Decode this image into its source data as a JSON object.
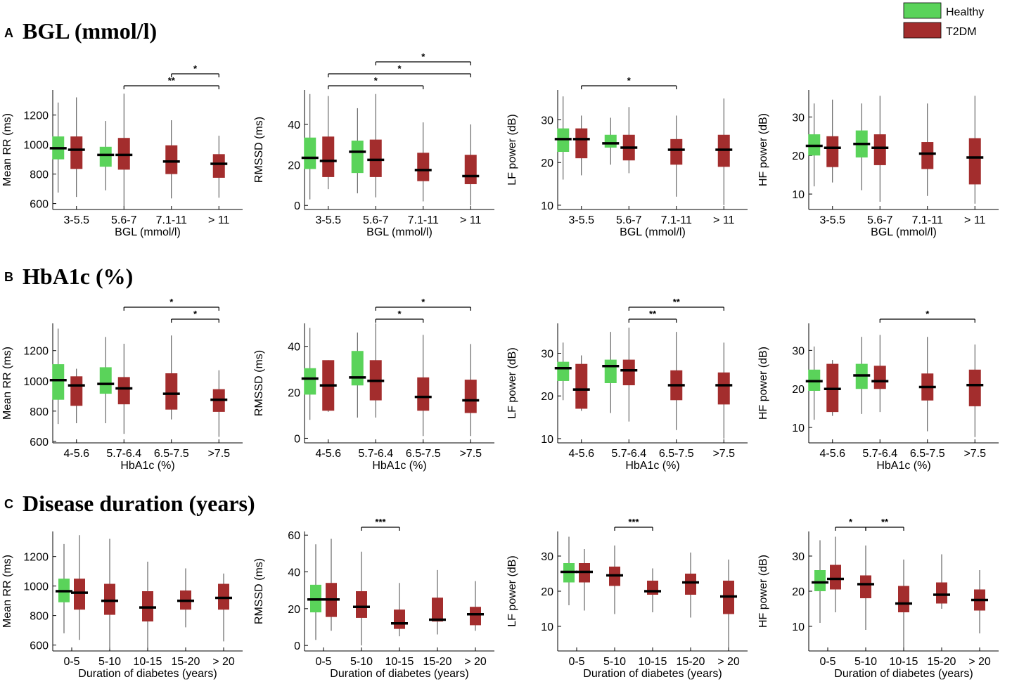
{
  "legend": [
    {
      "label": "Healthy",
      "color": "#5ad35a"
    },
    {
      "label": "T2DM",
      "color": "#a32d2d"
    }
  ],
  "colors": {
    "healthy": "#5ad35a",
    "t2dm": "#a32d2d",
    "axis": "#000000",
    "median": "#000000"
  },
  "sections": [
    {
      "letter": "A",
      "title": "BGL (mmol/l)"
    },
    {
      "letter": "B",
      "title": "HbA1c (%)"
    },
    {
      "letter": "C",
      "title": "Disease duration (years)"
    }
  ],
  "chart_data": [
    {
      "type": "box",
      "section": "A",
      "ylabel": "Mean RR (ms)",
      "xlabel": "BGL (mmol/l)",
      "ylim": [
        560,
        1370
      ],
      "yticks": [
        600,
        800,
        1000,
        1200
      ],
      "categories": [
        "3-5.5",
        "5.6-7",
        "7.1-11",
        "> 11"
      ],
      "boxes": [
        {
          "cat": 0,
          "group": "Healthy",
          "min": 675,
          "q1": 900,
          "median": 975,
          "q3": 1055,
          "max": 1285
        },
        {
          "cat": 0,
          "group": "T2DM",
          "min": 645,
          "q1": 835,
          "median": 965,
          "q3": 1055,
          "max": 1320
        },
        {
          "cat": 1,
          "group": "Healthy",
          "min": 690,
          "q1": 850,
          "median": 930,
          "q3": 985,
          "max": 1160
        },
        {
          "cat": 1,
          "group": "T2DM",
          "min": 580,
          "q1": 830,
          "median": 930,
          "q3": 1045,
          "max": 1345
        },
        {
          "cat": 2,
          "group": "T2DM",
          "min": 635,
          "q1": 800,
          "median": 885,
          "q3": 995,
          "max": 1165
        },
        {
          "cat": 3,
          "group": "T2DM",
          "min": 640,
          "q1": 775,
          "median": 870,
          "q3": 935,
          "max": 1060
        }
      ],
      "significance": [
        {
          "from": 1,
          "to": 3,
          "label": "**",
          "level": 0
        },
        {
          "from": 2,
          "to": 3,
          "label": "*",
          "level": 1
        }
      ]
    },
    {
      "type": "box",
      "section": "A",
      "ylabel": "RMSSD (ms)",
      "xlabel": "BGL (mmol/l)",
      "ylim": [
        -2,
        57
      ],
      "yticks": [
        0,
        20,
        40
      ],
      "categories": [
        "3-5.5",
        "5.6-7",
        "7.1-11",
        "> 11"
      ],
      "boxes": [
        {
          "cat": 0,
          "group": "Healthy",
          "min": 3,
          "q1": 18,
          "median": 23.5,
          "q3": 33.5,
          "max": 55
        },
        {
          "cat": 0,
          "group": "T2DM",
          "min": 8,
          "q1": 14,
          "median": 22,
          "q3": 34,
          "max": 54
        },
        {
          "cat": 1,
          "group": "Healthy",
          "min": 6,
          "q1": 16,
          "median": 26.5,
          "q3": 32,
          "max": 48
        },
        {
          "cat": 1,
          "group": "T2DM",
          "min": 4,
          "q1": 14,
          "median": 22.5,
          "q3": 32.5,
          "max": 55
        },
        {
          "cat": 2,
          "group": "T2DM",
          "min": 2,
          "q1": 12,
          "median": 17.5,
          "q3": 26,
          "max": 41
        },
        {
          "cat": 3,
          "group": "T2DM",
          "min": 0,
          "q1": 10.5,
          "median": 14.5,
          "q3": 25,
          "max": 40
        }
      ],
      "significance": [
        {
          "from": 0,
          "to": 2,
          "label": "*",
          "level": 0
        },
        {
          "from": 0,
          "to": 3,
          "label": "*",
          "level": 1
        },
        {
          "from": 1,
          "to": 3,
          "label": "*",
          "level": 2
        }
      ]
    },
    {
      "type": "box",
      "section": "A",
      "ylabel": "LF power (dB)",
      "xlabel": "BGL (mmol/l)",
      "ylim": [
        9,
        37
      ],
      "yticks": [
        10,
        20,
        30
      ],
      "categories": [
        "3-5.5",
        "5.6-7",
        "7.1-11",
        "> 11"
      ],
      "boxes": [
        {
          "cat": 0,
          "group": "Healthy",
          "min": 16,
          "q1": 22.5,
          "median": 25.5,
          "q3": 28,
          "max": 35.5
        },
        {
          "cat": 0,
          "group": "T2DM",
          "min": 17,
          "q1": 21,
          "median": 25.5,
          "q3": 28,
          "max": 31
        },
        {
          "cat": 1,
          "group": "Healthy",
          "min": 19.5,
          "q1": 23.5,
          "median": 24.5,
          "q3": 26.5,
          "max": 30.5
        },
        {
          "cat": 1,
          "group": "T2DM",
          "min": 17.5,
          "q1": 20.5,
          "median": 23.5,
          "q3": 26.5,
          "max": 33
        },
        {
          "cat": 2,
          "group": "T2DM",
          "min": 12,
          "q1": 19.5,
          "median": 23,
          "q3": 25.5,
          "max": 31
        },
        {
          "cat": 3,
          "group": "T2DM",
          "min": 10,
          "q1": 19,
          "median": 23,
          "q3": 26.5,
          "max": 35
        }
      ],
      "significance": [
        {
          "from": 0,
          "to": 2,
          "label": "*",
          "level": 0
        }
      ]
    },
    {
      "type": "box",
      "section": "A",
      "ylabel": "HF power (dB)",
      "xlabel": "BGL (mmol/l)",
      "ylim": [
        6,
        37
      ],
      "yticks": [
        10,
        20,
        30
      ],
      "categories": [
        "3-5.5",
        "5.6-7",
        "7.1-11",
        "> 11"
      ],
      "boxes": [
        {
          "cat": 0,
          "group": "Healthy",
          "min": 12,
          "q1": 20,
          "median": 22.5,
          "q3": 25.5,
          "max": 33.5
        },
        {
          "cat": 0,
          "group": "T2DM",
          "min": 13,
          "q1": 17,
          "median": 22,
          "q3": 25,
          "max": 34.5
        },
        {
          "cat": 1,
          "group": "Healthy",
          "min": 11,
          "q1": 19.5,
          "median": 23,
          "q3": 26.5,
          "max": 33.5
        },
        {
          "cat": 1,
          "group": "T2DM",
          "min": 8,
          "q1": 17.5,
          "median": 22,
          "q3": 25.5,
          "max": 35.5
        },
        {
          "cat": 2,
          "group": "T2DM",
          "min": 9.5,
          "q1": 16.5,
          "median": 20.5,
          "q3": 23.5,
          "max": 33.5
        },
        {
          "cat": 3,
          "group": "T2DM",
          "min": 7.5,
          "q1": 12.5,
          "median": 19.5,
          "q3": 24.5,
          "max": 35.5
        }
      ],
      "significance": []
    },
    {
      "type": "box",
      "section": "B",
      "ylabel": "Mean RR (ms)",
      "xlabel": "HbA1c (%)",
      "ylim": [
        590,
        1380
      ],
      "yticks": [
        600,
        800,
        1000,
        1200
      ],
      "categories": [
        "4-5.6",
        "5.7-6.4",
        "6.5-7.5",
        ">7.5"
      ],
      "boxes": [
        {
          "cat": 0,
          "group": "Healthy",
          "min": 715,
          "q1": 875,
          "median": 1005,
          "q3": 1110,
          "max": 1345
        },
        {
          "cat": 0,
          "group": "T2DM",
          "min": 720,
          "q1": 835,
          "median": 970,
          "q3": 1030,
          "max": 1080
        },
        {
          "cat": 1,
          "group": "Healthy",
          "min": 720,
          "q1": 915,
          "median": 980,
          "q3": 1090,
          "max": 1290
        },
        {
          "cat": 1,
          "group": "T2DM",
          "min": 650,
          "q1": 845,
          "median": 950,
          "q3": 1025,
          "max": 1245
        },
        {
          "cat": 2,
          "group": "T2DM",
          "min": 745,
          "q1": 810,
          "median": 915,
          "q3": 1050,
          "max": 1300
        },
        {
          "cat": 3,
          "group": "T2DM",
          "min": 630,
          "q1": 795,
          "median": 875,
          "q3": 945,
          "max": 1070
        }
      ],
      "significance": [
        {
          "from": 2,
          "to": 3,
          "label": "*",
          "level": 0
        },
        {
          "from": 1,
          "to": 3,
          "label": "*",
          "level": 1
        }
      ]
    },
    {
      "type": "box",
      "section": "B",
      "ylabel": "RMSSD (ms)",
      "xlabel": "HbA1c (%)",
      "ylim": [
        -2,
        50
      ],
      "yticks": [
        0,
        20,
        40
      ],
      "categories": [
        "4-5.6",
        "5.7-6.4",
        "6.5-7.5",
        ">7.5"
      ],
      "boxes": [
        {
          "cat": 0,
          "group": "Healthy",
          "min": 8,
          "q1": 19,
          "median": 26,
          "q3": 30.5,
          "max": 48
        },
        {
          "cat": 0,
          "group": "T2DM",
          "min": 11.5,
          "q1": 12,
          "median": 23,
          "q3": 34,
          "max": 34
        },
        {
          "cat": 1,
          "group": "Healthy",
          "min": 9,
          "q1": 23,
          "median": 26.5,
          "q3": 38,
          "max": 46
        },
        {
          "cat": 1,
          "group": "T2DM",
          "min": 9,
          "q1": 16.5,
          "median": 25,
          "q3": 34,
          "max": 50
        },
        {
          "cat": 2,
          "group": "T2DM",
          "min": 1,
          "q1": 12,
          "median": 18,
          "q3": 26.5,
          "max": 45
        },
        {
          "cat": 3,
          "group": "T2DM",
          "min": 1,
          "q1": 11,
          "median": 16.5,
          "q3": 25.5,
          "max": 41
        }
      ],
      "significance": [
        {
          "from": 1,
          "to": 2,
          "label": "*",
          "level": 0
        },
        {
          "from": 1,
          "to": 3,
          "label": "*",
          "level": 1
        }
      ]
    },
    {
      "type": "box",
      "section": "B",
      "ylabel": "LF power (dB)",
      "xlabel": "HbA1c (%)",
      "ylim": [
        9,
        37
      ],
      "yticks": [
        10,
        20,
        30
      ],
      "categories": [
        "4-5.6",
        "5.7-6.4",
        "6.5-7.5",
        ">7.5"
      ],
      "boxes": [
        {
          "cat": 0,
          "group": "Healthy",
          "min": 19,
          "q1": 23.5,
          "median": 26.5,
          "q3": 28,
          "max": 32.5
        },
        {
          "cat": 0,
          "group": "T2DM",
          "min": 16.5,
          "q1": 17,
          "median": 21.5,
          "q3": 27.5,
          "max": 29.5
        },
        {
          "cat": 1,
          "group": "Healthy",
          "min": 16,
          "q1": 23,
          "median": 27,
          "q3": 28.5,
          "max": 35
        },
        {
          "cat": 1,
          "group": "T2DM",
          "min": 14,
          "q1": 22.5,
          "median": 26,
          "q3": 28.5,
          "max": 36
        },
        {
          "cat": 2,
          "group": "T2DM",
          "min": 12,
          "q1": 19,
          "median": 22.5,
          "q3": 26,
          "max": 35
        },
        {
          "cat": 3,
          "group": "T2DM",
          "min": 10,
          "q1": 18,
          "median": 22.5,
          "q3": 25.5,
          "max": 32.5
        }
      ],
      "significance": [
        {
          "from": 1,
          "to": 2,
          "label": "**",
          "level": 0
        },
        {
          "from": 1,
          "to": 3,
          "label": "**",
          "level": 1
        }
      ]
    },
    {
      "type": "box",
      "section": "B",
      "ylabel": "HF power (dB)",
      "xlabel": "HbA1c (%)",
      "ylim": [
        6,
        37
      ],
      "yticks": [
        10,
        20,
        30
      ],
      "categories": [
        "4-5.6",
        "5.7-6.4",
        "6.5-7.5",
        ">7.5"
      ],
      "boxes": [
        {
          "cat": 0,
          "group": "Healthy",
          "min": 12,
          "q1": 19.5,
          "median": 22,
          "q3": 25,
          "max": 31
        },
        {
          "cat": 0,
          "group": "T2DM",
          "min": 13,
          "q1": 14,
          "median": 20,
          "q3": 26.5,
          "max": 27.5
        },
        {
          "cat": 1,
          "group": "Healthy",
          "min": 13.5,
          "q1": 20,
          "median": 23.5,
          "q3": 26.5,
          "max": 33.5
        },
        {
          "cat": 1,
          "group": "T2DM",
          "min": 14,
          "q1": 20,
          "median": 22,
          "q3": 26,
          "max": 34
        },
        {
          "cat": 2,
          "group": "T2DM",
          "min": 9,
          "q1": 17,
          "median": 20.5,
          "q3": 24,
          "max": 33.5
        },
        {
          "cat": 3,
          "group": "T2DM",
          "min": 7.5,
          "q1": 15.5,
          "median": 21,
          "q3": 25,
          "max": 31.5
        }
      ],
      "significance": [
        {
          "from": 1,
          "to": 3,
          "label": "*",
          "level": 0
        }
      ]
    },
    {
      "type": "box",
      "section": "C",
      "ylabel": "Mean RR (ms)",
      "xlabel": "Duration of diabetes (years)",
      "ylim": [
        560,
        1370
      ],
      "yticks": [
        600,
        800,
        1000,
        1200
      ],
      "categories": [
        "0-5",
        "5-10",
        "10-15",
        "15-20",
        "> 20"
      ],
      "boxes": [
        {
          "cat": 0,
          "group": "Healthy",
          "min": 680,
          "q1": 890,
          "median": 965,
          "q3": 1050,
          "max": 1285
        },
        {
          "cat": 0,
          "group": "T2DM",
          "min": 635,
          "q1": 840,
          "median": 955,
          "q3": 1050,
          "max": 1345
        },
        {
          "cat": 1,
          "group": "T2DM",
          "min": 575,
          "q1": 805,
          "median": 900,
          "q3": 1015,
          "max": 1320
        },
        {
          "cat": 2,
          "group": "T2DM",
          "min": 580,
          "q1": 760,
          "median": 855,
          "q3": 965,
          "max": 1165
        },
        {
          "cat": 3,
          "group": "T2DM",
          "min": 720,
          "q1": 840,
          "median": 900,
          "q3": 970,
          "max": 1120
        },
        {
          "cat": 4,
          "group": "T2DM",
          "min": 625,
          "q1": 840,
          "median": 920,
          "q3": 1015,
          "max": 1085
        }
      ],
      "significance": []
    },
    {
      "type": "box",
      "section": "C",
      "ylabel": "RMSSD (ms)",
      "xlabel": "Duration of diabetes (years)",
      "ylim": [
        -3,
        62
      ],
      "yticks": [
        0,
        20,
        40,
        60
      ],
      "categories": [
        "0-5",
        "5-10",
        "10-15",
        "15-20",
        "> 20"
      ],
      "boxes": [
        {
          "cat": 0,
          "group": "Healthy",
          "min": 3,
          "q1": 18,
          "median": 25,
          "q3": 33,
          "max": 55
        },
        {
          "cat": 0,
          "group": "T2DM",
          "min": 8,
          "q1": 15.5,
          "median": 25,
          "q3": 34,
          "max": 58
        },
        {
          "cat": 1,
          "group": "T2DM",
          "min": 0,
          "q1": 15,
          "median": 21,
          "q3": 29.5,
          "max": 51
        },
        {
          "cat": 2,
          "group": "T2DM",
          "min": 5,
          "q1": 9,
          "median": 12,
          "q3": 19.5,
          "max": 34
        },
        {
          "cat": 3,
          "group": "T2DM",
          "min": 6,
          "q1": 13,
          "median": 14,
          "q3": 26,
          "max": 41
        },
        {
          "cat": 4,
          "group": "T2DM",
          "min": 8,
          "q1": 11,
          "median": 17,
          "q3": 21,
          "max": 35
        }
      ],
      "significance": [
        {
          "from": 1,
          "to": 2,
          "label": "***",
          "level": 0
        }
      ]
    },
    {
      "type": "box",
      "section": "C",
      "ylabel": "LF power (dB)",
      "xlabel": "Duration of diabetes (years)",
      "ylim": [
        3,
        37
      ],
      "yticks": [
        10,
        20,
        30
      ],
      "categories": [
        "0-5",
        "5-10",
        "10-15",
        "15-20",
        "> 20"
      ],
      "boxes": [
        {
          "cat": 0,
          "group": "Healthy",
          "min": 16,
          "q1": 22.5,
          "median": 25.5,
          "q3": 28,
          "max": 35.5
        },
        {
          "cat": 0,
          "group": "T2DM",
          "min": 14.5,
          "q1": 22.5,
          "median": 25.5,
          "q3": 28,
          "max": 32
        },
        {
          "cat": 1,
          "group": "T2DM",
          "min": 13.5,
          "q1": 21.5,
          "median": 24.5,
          "q3": 27,
          "max": 33
        },
        {
          "cat": 2,
          "group": "T2DM",
          "min": 14,
          "q1": 19,
          "median": 20,
          "q3": 23,
          "max": 26.5
        },
        {
          "cat": 3,
          "group": "T2DM",
          "min": 12.5,
          "q1": 19,
          "median": 22.5,
          "q3": 25,
          "max": 31
        },
        {
          "cat": 4,
          "group": "T2DM",
          "min": 4,
          "q1": 13.5,
          "median": 18.5,
          "q3": 23,
          "max": 29
        }
      ],
      "significance": [
        {
          "from": 1,
          "to": 2,
          "label": "***",
          "level": 0
        }
      ]
    },
    {
      "type": "box",
      "section": "C",
      "ylabel": "HF power (dB)",
      "xlabel": "Duration of diabetes (years)",
      "ylim": [
        3,
        37
      ],
      "yticks": [
        10,
        20,
        30
      ],
      "categories": [
        "0-5",
        "5-10",
        "10-15",
        "15-20",
        "> 20"
      ],
      "boxes": [
        {
          "cat": 0,
          "group": "Healthy",
          "min": 11,
          "q1": 20,
          "median": 22.5,
          "q3": 26,
          "max": 34.5
        },
        {
          "cat": 0,
          "group": "T2DM",
          "min": 14,
          "q1": 20.5,
          "median": 23.5,
          "q3": 27.5,
          "max": 35.5
        },
        {
          "cat": 1,
          "group": "T2DM",
          "min": 9,
          "q1": 18,
          "median": 22,
          "q3": 24.5,
          "max": 33
        },
        {
          "cat": 2,
          "group": "T2DM",
          "min": 4,
          "q1": 14,
          "median": 16.5,
          "q3": 21.5,
          "max": 29
        },
        {
          "cat": 3,
          "group": "T2DM",
          "min": 15,
          "q1": 16.5,
          "median": 19,
          "q3": 22.5,
          "max": 30.5
        },
        {
          "cat": 4,
          "group": "T2DM",
          "min": 8,
          "q1": 14.5,
          "median": 17.5,
          "q3": 20.5,
          "max": 26
        }
      ],
      "significance": [
        {
          "from": 0,
          "to": 1,
          "label": "*",
          "level": 0
        },
        {
          "from": 1,
          "to": 2,
          "label": "**",
          "level": 0
        }
      ]
    }
  ]
}
